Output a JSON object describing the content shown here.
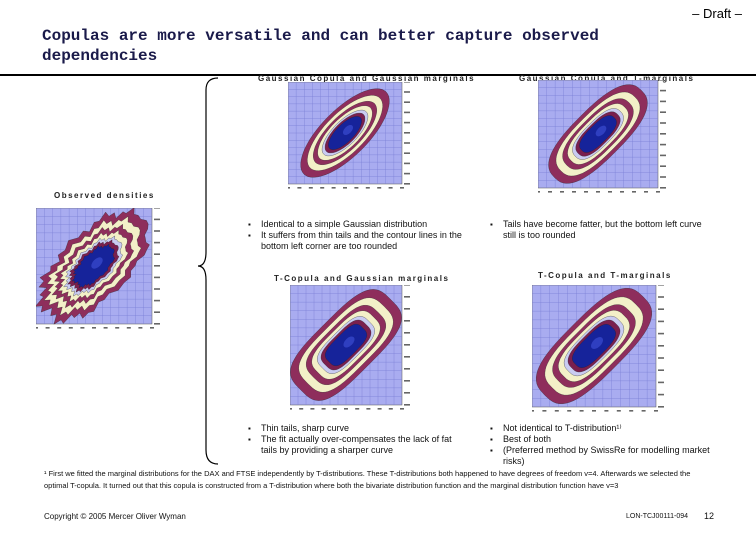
{
  "header": {
    "draft": "– Draft –",
    "title": "Copulas are more versatile and can better capture observed dependencies"
  },
  "plots": {
    "gauss_gauss": "Gaussian Copula and Gaussian marginals",
    "gauss_t": "Gaussian Copula and T-marginals",
    "observed": "Observed densities",
    "t_gauss": "T-Copula and Gaussian marginals",
    "t_t": "T-Copula and T-marginals"
  },
  "bullets": {
    "gauss_gauss": [
      "Identical to a simple Gaussian distribution",
      "It suffers from thin tails and the contour lines in the bottom left corner are too rounded"
    ],
    "gauss_t": [
      "Tails have become fatter, but the bottom left curve still is too rounded"
    ],
    "t_gauss": [
      "Thin tails, sharp curve",
      "The fit actually over-compensates the lack of fat tails by providing a sharper curve"
    ],
    "t_t": [
      "Not identical to T-distribution¹⁾",
      "Best of both",
      "(Preferred method by SwissRe for modelling market risks)"
    ]
  },
  "footnote": "¹ First we fitted the marginal distributions for the DAX and FTSE independently by T-distributions. These T-distributions both happened to have degrees of freedom v=4. Afterwards we selected the optimal T-copula. It turned out that this copula is constructed from a T-distribution where both the bivariate distribution function and the marginal distribution function have v=3",
  "footer": {
    "copyright": "Copyright © 2005 Mercer Oliver Wyman",
    "doc_id": "LON-TCJ00111-094",
    "page": "12"
  },
  "colors": {
    "grid_bg": "#a9acf0",
    "grid_line": "#7b7fd6",
    "outer_contour": "#8e2e5c",
    "light_band": "#f3f0c8",
    "inner_band": "#7a1f4e",
    "core": "#16239a",
    "title_text": "#1a1a4a"
  }
}
